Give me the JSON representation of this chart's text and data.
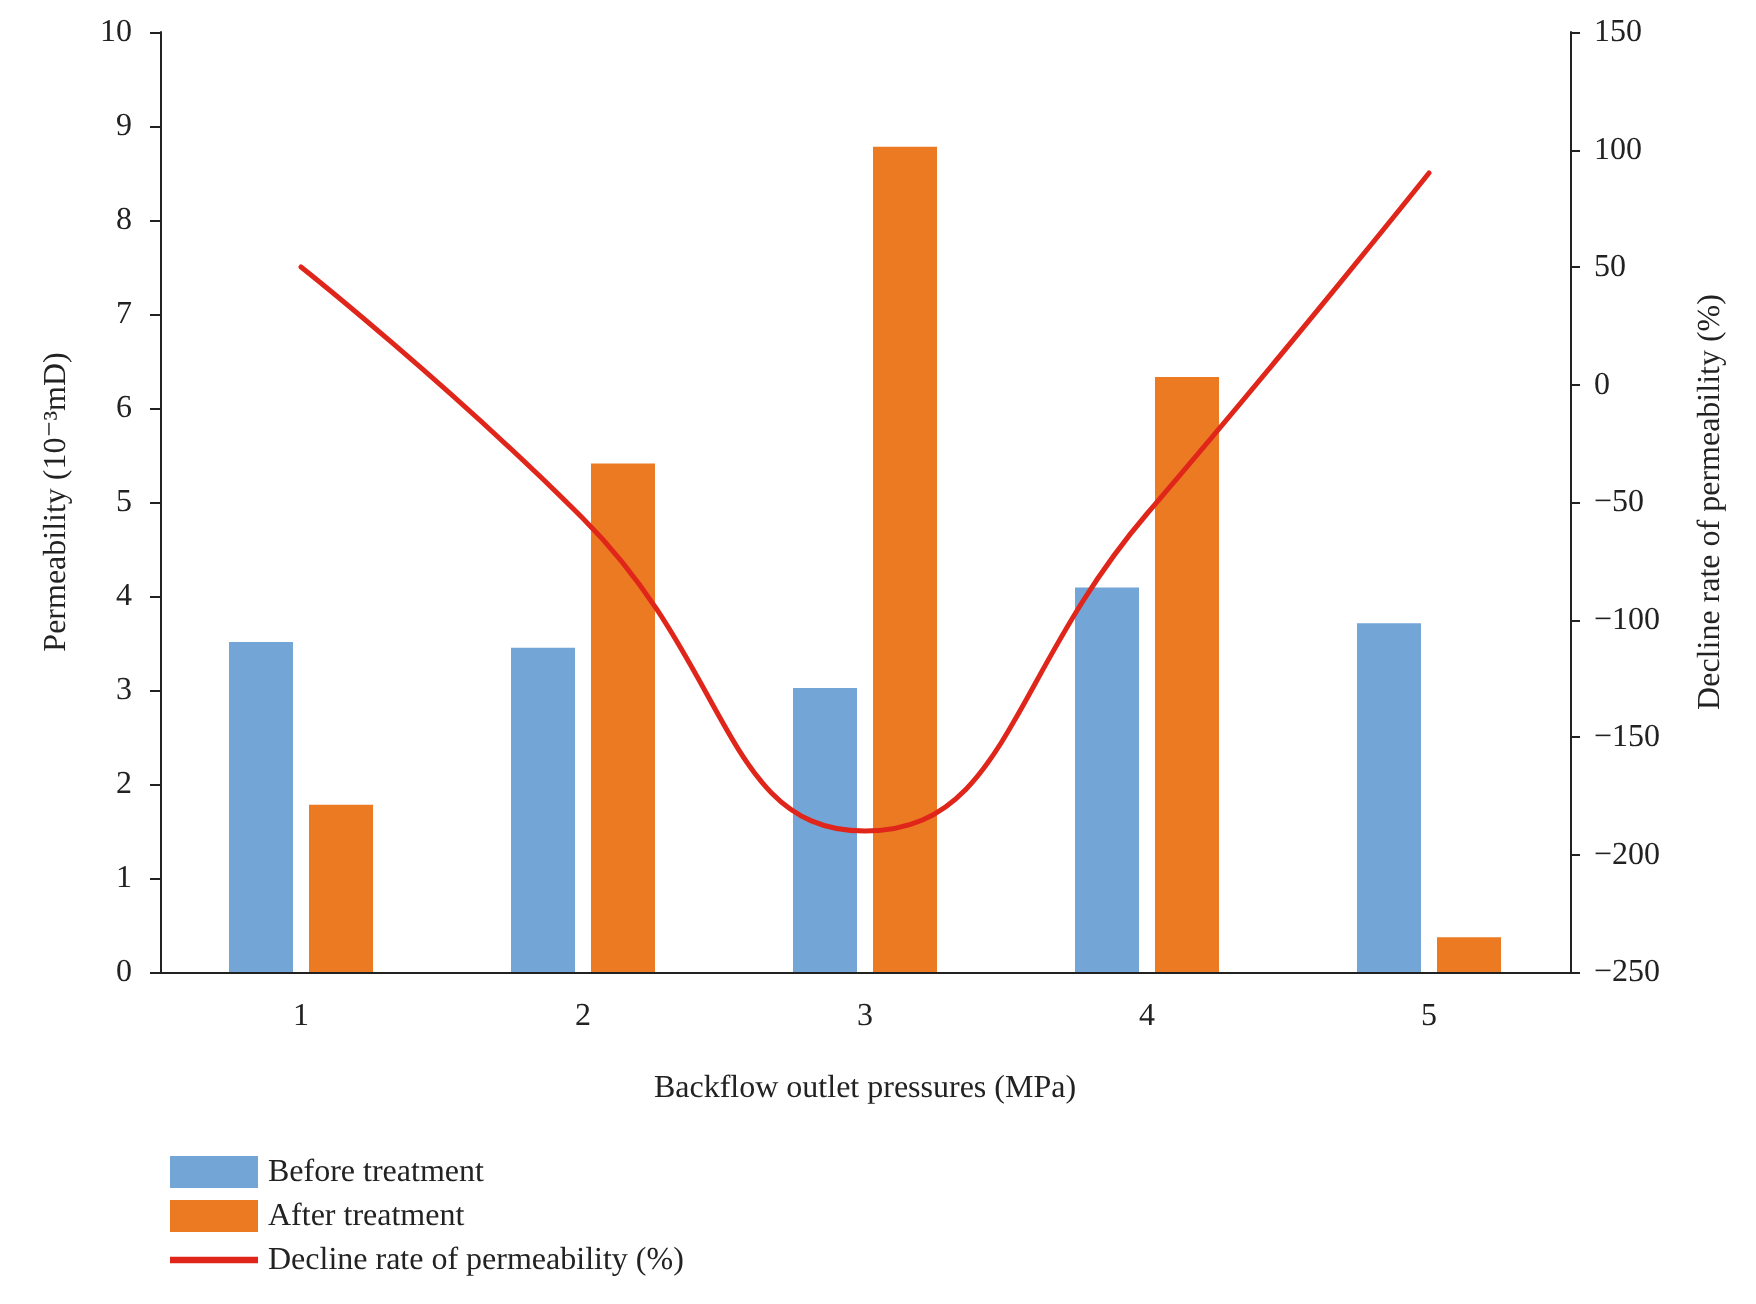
{
  "chart_data": {
    "type": "bar",
    "xlabel": "Backflow outlet pressures (MPa)",
    "ylabel": "Permeability (10⁻³mD)",
    "y2label": "Decline rate of permeability (%)",
    "categories": [
      "1",
      "2",
      "3",
      "4",
      "5"
    ],
    "series": [
      {
        "name": "Before treatment",
        "color": "#73a5d6",
        "values": [
          3.51,
          3.45,
          3.02,
          4.09,
          3.71
        ]
      },
      {
        "name": "After treatment",
        "color": "#ec7a23",
        "values": [
          1.78,
          5.41,
          8.78,
          6.33,
          0.37
        ]
      },
      {
        "name": "Decline rate of permeability (%)",
        "type": "line",
        "axis": "y2",
        "color": "#e0261b",
        "values": [
          50,
          -57,
          -190,
          -55,
          90
        ]
      }
    ],
    "ylim": [
      0,
      10
    ],
    "yticks": [
      0,
      1,
      2,
      3,
      4,
      5,
      6,
      7,
      8,
      9,
      10
    ],
    "y2lim": [
      -250,
      150
    ],
    "y2ticks": [
      -250,
      -200,
      -150,
      -100,
      -50,
      0,
      50,
      100,
      150
    ],
    "legend": "bottom left",
    "grid": false,
    "marker": "none",
    "line_style": "solid"
  }
}
